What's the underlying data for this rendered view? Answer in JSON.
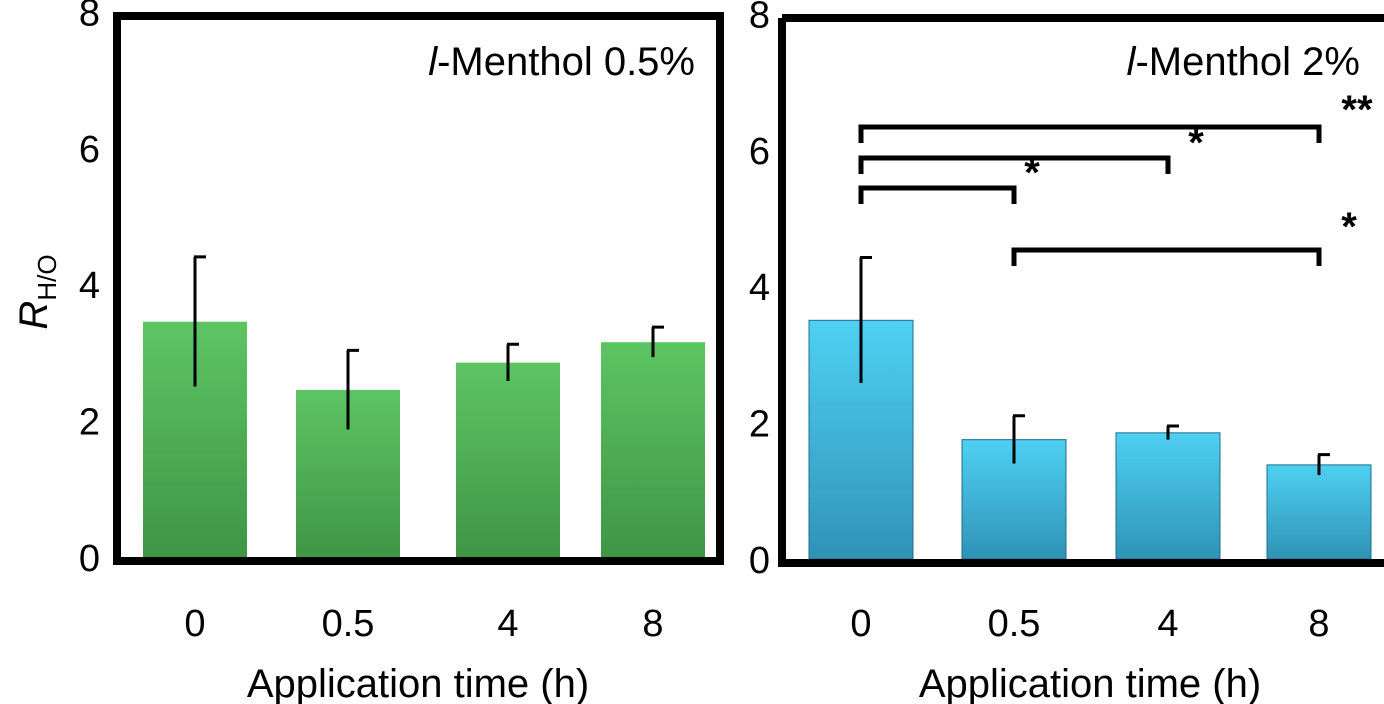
{
  "chart_data": [
    {
      "type": "bar",
      "title_prefix": "l",
      "title": "-Menthol 0.5%",
      "xlabel": "Application time (h)",
      "ylabel": "R",
      "ylabel_subscript": "H/O",
      "categories": [
        "0",
        "0.5",
        "4",
        "8"
      ],
      "values": [
        3.45,
        2.45,
        2.85,
        3.15
      ],
      "errors": [
        0.95,
        0.58,
        0.27,
        0.22
      ],
      "ylim": [
        0,
        8
      ],
      "yticks": [
        "0",
        "2",
        "4",
        "6",
        "8"
      ],
      "bar_color": "#4fae57",
      "significance": []
    },
    {
      "type": "bar",
      "title_prefix": "l",
      "title": "-Menthol 2%",
      "xlabel": "Application time (h)",
      "ylabel": "",
      "categories": [
        "0",
        "0.5",
        "4",
        "8"
      ],
      "values": [
        3.5,
        1.75,
        1.85,
        1.38
      ],
      "errors": [
        0.92,
        0.35,
        0.1,
        0.15
      ],
      "ylim": [
        0,
        8
      ],
      "yticks": [
        "0",
        "2",
        "4",
        "6",
        "8"
      ],
      "bar_color": "#3cb4d8",
      "significance": [
        {
          "from": "0",
          "to": "0.5",
          "label": "*"
        },
        {
          "from": "0",
          "to": "4",
          "label": "*"
        },
        {
          "from": "0",
          "to": "8",
          "label": "**"
        },
        {
          "from": "0.5",
          "to": "8",
          "label": "*"
        }
      ]
    }
  ]
}
